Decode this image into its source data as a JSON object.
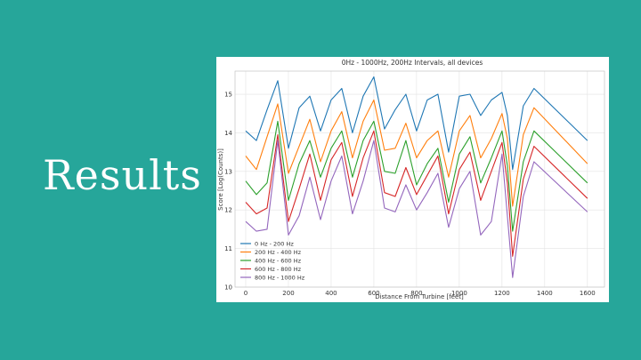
{
  "slide": {
    "title": "Results"
  },
  "chart_data": {
    "type": "line",
    "title": "0Hz - 1000Hz, 200Hz Intervals, all devices",
    "xlabel": "Distance From Turbine [feet]",
    "ylabel": "Score [Log(Counts)]",
    "xlim": [
      -50,
      1680
    ],
    "ylim": [
      10,
      15.6
    ],
    "xticks": [
      0,
      200,
      400,
      600,
      800,
      1000,
      1200,
      1400,
      1600
    ],
    "yticks": [
      10,
      11,
      12,
      13,
      14,
      15
    ],
    "grid": true,
    "legend_position": "lower-left",
    "x": [
      0,
      50,
      100,
      150,
      200,
      250,
      300,
      350,
      400,
      450,
      500,
      550,
      600,
      650,
      700,
      750,
      800,
      850,
      900,
      950,
      1000,
      1050,
      1100,
      1150,
      1200,
      1225,
      1250,
      1300,
      1350,
      1600
    ],
    "series": [
      {
        "name": "0 Hz - 200 Hz",
        "color": "#1f77b4",
        "values": [
          14.05,
          13.8,
          14.6,
          15.35,
          13.6,
          14.65,
          14.95,
          14.05,
          14.85,
          15.15,
          14.0,
          14.95,
          15.45,
          14.1,
          14.6,
          15.0,
          14.05,
          14.85,
          15.0,
          13.5,
          14.95,
          15.0,
          14.45,
          14.85,
          15.05,
          14.45,
          13.05,
          14.7,
          15.15,
          13.8
        ]
      },
      {
        "name": "200 Hz - 400 Hz",
        "color": "#ff7f0e",
        "values": [
          13.4,
          13.05,
          13.9,
          14.75,
          12.95,
          13.65,
          14.35,
          13.25,
          14.05,
          14.55,
          13.35,
          14.3,
          14.85,
          13.55,
          13.6,
          14.25,
          13.35,
          13.8,
          14.05,
          12.85,
          14.05,
          14.45,
          13.35,
          13.85,
          14.5,
          13.85,
          12.1,
          13.95,
          14.65,
          13.2
        ]
      },
      {
        "name": "400 Hz - 600 Hz",
        "color": "#2ca02c",
        "values": [
          12.75,
          12.4,
          12.7,
          14.3,
          12.25,
          13.2,
          13.8,
          12.85,
          13.6,
          14.05,
          12.85,
          13.8,
          14.3,
          13.0,
          12.95,
          13.8,
          12.65,
          13.2,
          13.6,
          12.2,
          13.45,
          13.9,
          12.7,
          13.35,
          14.05,
          13.15,
          11.45,
          13.25,
          14.05,
          12.7
        ]
      },
      {
        "name": "600 Hz - 800 Hz",
        "color": "#d62728",
        "values": [
          12.2,
          11.9,
          12.05,
          13.95,
          11.7,
          12.55,
          13.45,
          12.25,
          13.3,
          13.75,
          12.35,
          13.35,
          14.05,
          12.45,
          12.35,
          13.1,
          12.4,
          12.9,
          13.4,
          11.9,
          13.05,
          13.5,
          12.25,
          13.0,
          13.75,
          12.7,
          10.8,
          12.8,
          13.65,
          12.3
        ]
      },
      {
        "name": "800 Hz - 1000 Hz",
        "color": "#9467bd",
        "values": [
          11.7,
          11.45,
          11.5,
          13.8,
          11.35,
          11.85,
          12.85,
          11.75,
          12.75,
          13.4,
          11.9,
          12.75,
          13.8,
          12.05,
          11.95,
          12.65,
          12.0,
          12.45,
          12.95,
          11.55,
          12.55,
          13.0,
          11.35,
          11.7,
          13.45,
          11.85,
          10.25,
          12.35,
          13.25,
          11.95
        ]
      }
    ]
  }
}
